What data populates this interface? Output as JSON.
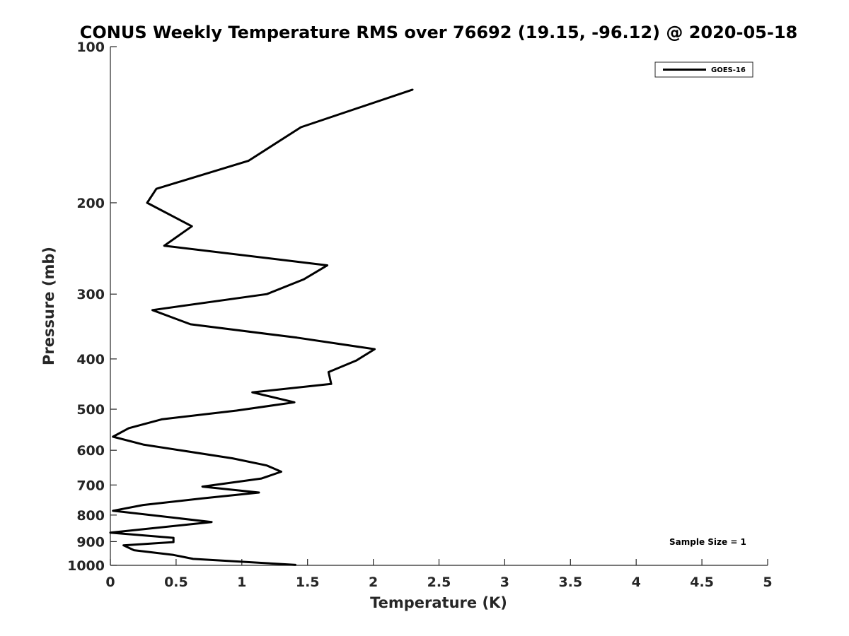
{
  "chart_data": {
    "type": "line",
    "title": "CONUS Weekly Temperature RMS over 76692 (19.15, -96.12) @ 2020-05-18",
    "xlabel": "Temperature (K)",
    "ylabel": "Pressure (mb)",
    "xlim": [
      0,
      5
    ],
    "ylim": [
      100,
      1000
    ],
    "y_scale": "log",
    "y_direction": "reversed",
    "grid": false,
    "legend_position": "top-right",
    "x_ticks": [
      "0",
      "0.5",
      "1",
      "1.5",
      "2",
      "2.5",
      "3",
      "3.5",
      "4",
      "4.5",
      "5"
    ],
    "y_ticks": [
      "100",
      "200",
      "300",
      "400",
      "500",
      "600",
      "700",
      "800",
      "900",
      "1000"
    ],
    "annotation": "Sample Size = 1",
    "series_color": "#000000",
    "series": [
      {
        "name": "GOES-16",
        "points": [
          [
            2.3,
            121
          ],
          [
            1.45,
            143
          ],
          [
            1.05,
            166
          ],
          [
            0.35,
            188
          ],
          [
            0.28,
            200
          ],
          [
            0.62,
            222
          ],
          [
            0.41,
            242
          ],
          [
            1.65,
            264
          ],
          [
            1.47,
            281
          ],
          [
            1.19,
            300
          ],
          [
            0.32,
            322
          ],
          [
            0.61,
            343
          ],
          [
            1.42,
            364
          ],
          [
            2.01,
            383
          ],
          [
            1.87,
            403
          ],
          [
            1.66,
            424
          ],
          [
            1.68,
            447
          ],
          [
            1.08,
            464
          ],
          [
            1.4,
            485
          ],
          [
            0.96,
            503
          ],
          [
            0.39,
            523
          ],
          [
            0.14,
            544
          ],
          [
            0.02,
            565
          ],
          [
            0.25,
            585
          ],
          [
            0.93,
            622
          ],
          [
            1.19,
            642
          ],
          [
            1.3,
            660
          ],
          [
            1.15,
            680
          ],
          [
            0.7,
            705
          ],
          [
            1.13,
            724
          ],
          [
            0.7,
            743
          ],
          [
            0.25,
            765
          ],
          [
            0.02,
            785
          ],
          [
            0.77,
            825
          ],
          [
            0.0,
            865
          ],
          [
            0.48,
            885
          ],
          [
            0.48,
            902
          ],
          [
            0.1,
            915
          ],
          [
            0.18,
            935
          ],
          [
            0.48,
            955
          ],
          [
            0.63,
            972
          ],
          [
            1.41,
            998
          ]
        ]
      }
    ]
  }
}
